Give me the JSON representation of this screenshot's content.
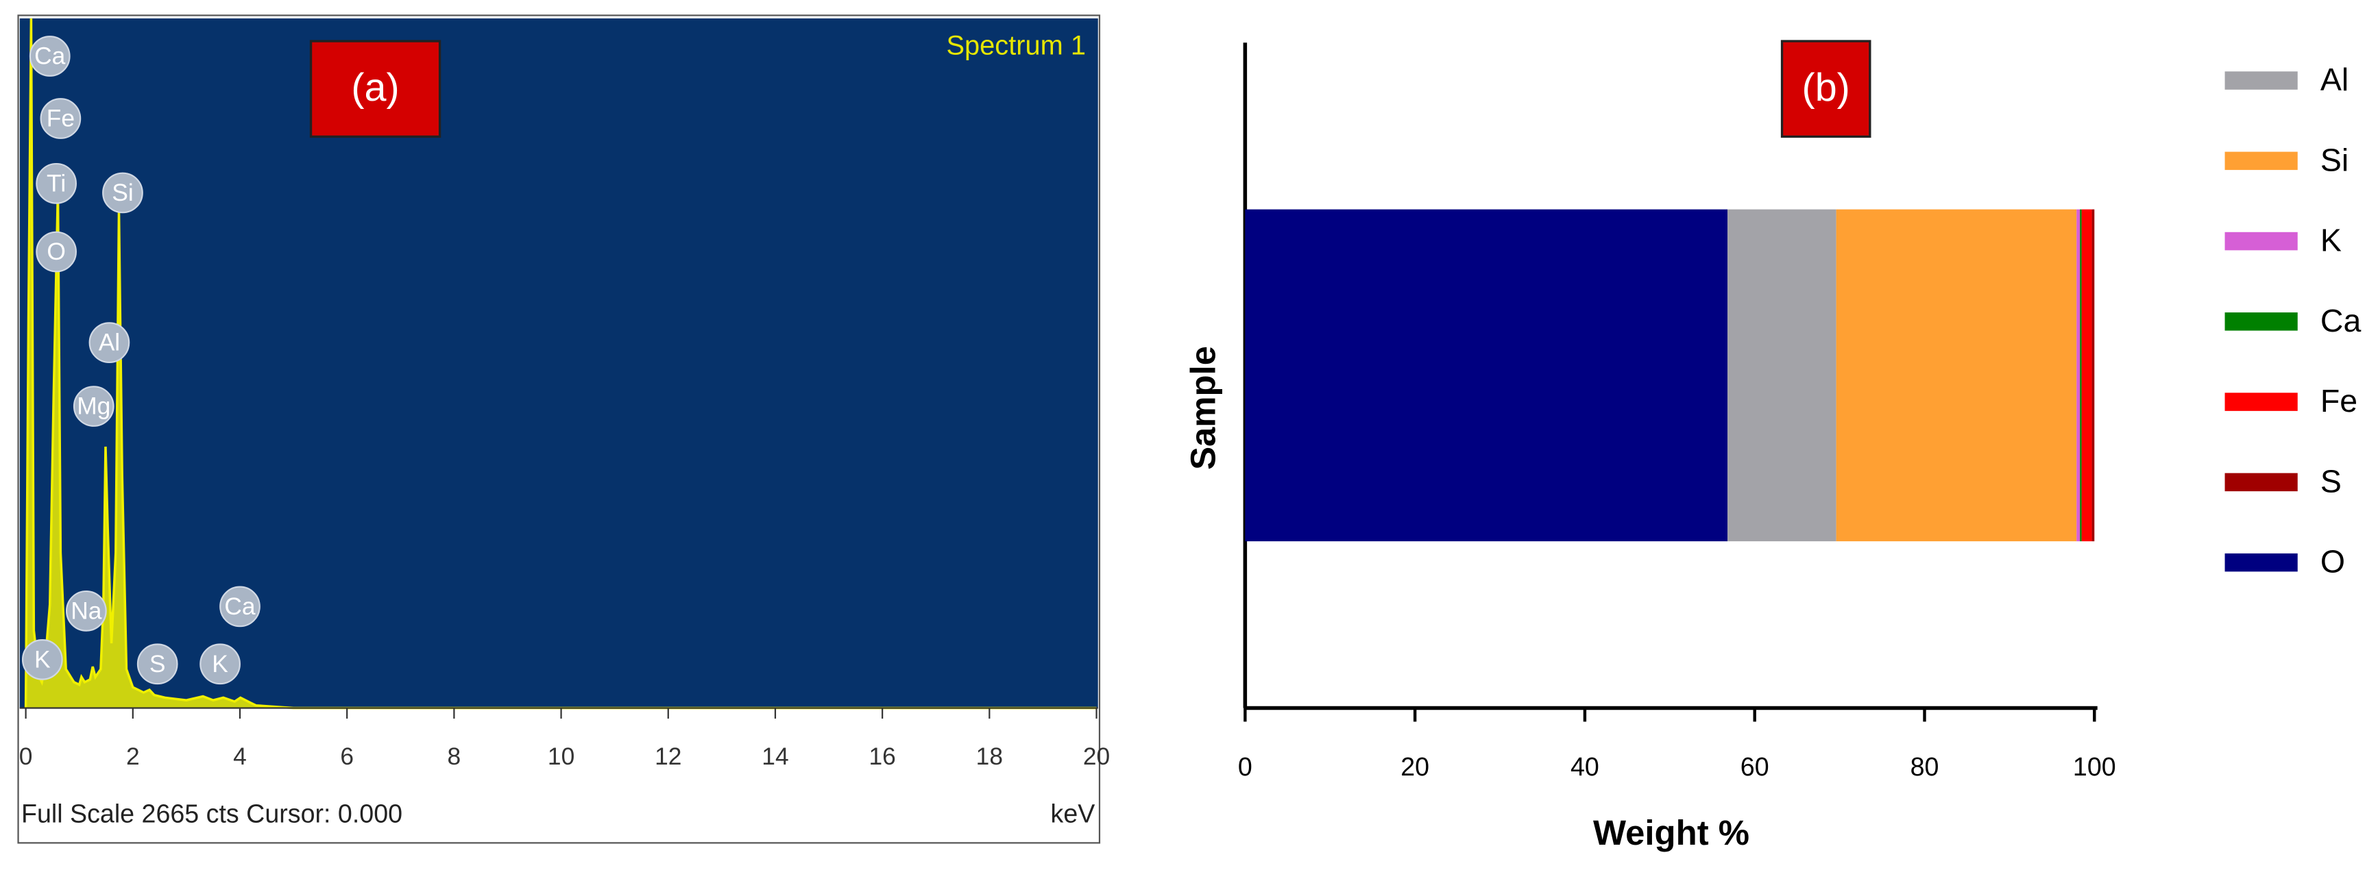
{
  "chart_data": [
    {
      "type": "area",
      "title": "Spectrum 1",
      "label": "(a)",
      "x_label": "keV",
      "footer": "Full Scale 2665 cts Cursor: 0.000",
      "x": [
        0,
        0.05,
        0.1,
        0.15,
        0.25,
        0.3,
        0.35,
        0.45,
        0.52,
        0.6,
        0.65,
        0.75,
        0.9,
        1.0,
        1.04,
        1.1,
        1.2,
        1.25,
        1.3,
        1.4,
        1.45,
        1.49,
        1.53,
        1.6,
        1.68,
        1.74,
        1.8,
        1.88,
        2.0,
        2.2,
        2.31,
        2.4,
        2.6,
        3.0,
        3.31,
        3.5,
        3.69,
        3.9,
        4.01,
        4.2,
        4.3,
        5,
        20
      ],
      "values": [
        0,
        1500,
        2665,
        300,
        120,
        100,
        150,
        400,
        1200,
        2000,
        600,
        150,
        100,
        90,
        120,
        100,
        110,
        160,
        120,
        150,
        400,
        1010,
        700,
        250,
        600,
        1920,
        900,
        150,
        80,
        60,
        70,
        50,
        40,
        30,
        45,
        30,
        40,
        25,
        40,
        20,
        10,
        0,
        0
      ],
      "color": "#f0f000",
      "background": "#06326a",
      "xlim": [
        0,
        20
      ],
      "ylim": [
        0,
        2665
      ],
      "xticks": [
        0,
        2,
        4,
        6,
        8,
        10,
        12,
        14,
        16,
        18,
        20
      ],
      "annotations": [
        {
          "text": "Ca",
          "x": 0.45,
          "y": 2519
        },
        {
          "text": "Fe",
          "x": 0.65,
          "y": 2278
        },
        {
          "text": "Ti",
          "x": 0.57,
          "y": 2027
        },
        {
          "text": "O",
          "x": 0.57,
          "y": 1763
        },
        {
          "text": "Si",
          "x": 1.81,
          "y": 1991
        },
        {
          "text": "Al",
          "x": 1.56,
          "y": 1412
        },
        {
          "text": "Mg",
          "x": 1.27,
          "y": 1166
        },
        {
          "text": "Na",
          "x": 1.13,
          "y": 375
        },
        {
          "text": "K",
          "x": 0.31,
          "y": 187
        },
        {
          "text": "S",
          "x": 2.46,
          "y": 170
        },
        {
          "text": "K",
          "x": 3.63,
          "y": 170
        },
        {
          "text": "Ca",
          "x": 4.0,
          "y": 392
        }
      ]
    },
    {
      "type": "stacked-bar",
      "label": "(b)",
      "x_label": "Weight %",
      "y_label": "Sample",
      "categories": [
        null
      ],
      "series": [
        {
          "name": "O",
          "color": "#000080",
          "values": [
            56.8
          ]
        },
        {
          "name": "Al",
          "color": "#a3a3a8",
          "values": [
            12.8
          ]
        },
        {
          "name": "Si",
          "color": "#ffa033",
          "values": [
            28.3
          ]
        },
        {
          "name": "K",
          "color": "#d65fd6",
          "values": [
            0.4
          ]
        },
        {
          "name": "Ca",
          "color": "#008000",
          "values": [
            0.2
          ]
        },
        {
          "name": "Fe",
          "color": "#ff0000",
          "values": [
            1.2
          ]
        },
        {
          "name": "S",
          "color": "#a00000",
          "values": [
            0.3
          ]
        }
      ],
      "xlim": [
        0,
        100
      ],
      "xticks": [
        0,
        20,
        40,
        60,
        80,
        100
      ]
    }
  ]
}
